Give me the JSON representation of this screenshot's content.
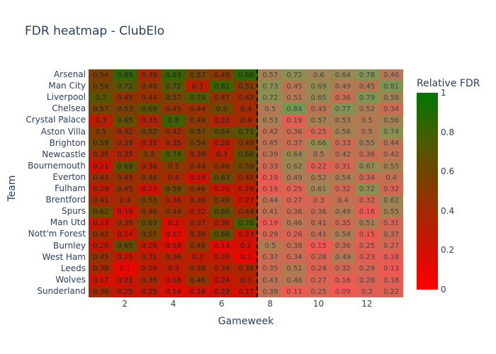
{
  "title": "FDR heatmap - ClubElo",
  "chart_data": {
    "type": "heatmap",
    "title": "FDR heatmap - ClubElo",
    "xlabel": "Gameweek",
    "ylabel": "Team",
    "x": [
      1,
      2,
      3,
      4,
      5,
      6,
      7,
      8,
      9,
      10,
      11,
      12,
      13
    ],
    "xticks": [
      "2",
      "4",
      "6",
      "8",
      "10",
      "12"
    ],
    "teams": [
      "Arsenal",
      "Man City",
      "Liverpool",
      "Chelsea",
      "Crystal Palace",
      "Aston Villa",
      "Brighton",
      "Newcastle",
      "Bournemouth",
      "Everton",
      "Fulham",
      "Brentford",
      "Spurs",
      "Man Utd",
      "Nott'm Forest",
      "Burnley",
      "West Ham",
      "Leeds",
      "Wolves",
      "Sunderland"
    ],
    "values": [
      [
        0.54,
        0.85,
        0.39,
        0.83,
        0.57,
        0.49,
        0.86,
        0.57,
        0.72,
        0.6,
        0.64,
        0.78,
        0.46
      ],
      [
        0.58,
        0.72,
        0.48,
        0.72,
        0.3,
        0.81,
        0.51,
        0.73,
        0.45,
        0.69,
        0.49,
        0.45,
        0.81
      ],
      [
        0.7,
        0.45,
        0.44,
        0.57,
        0.74,
        0.47,
        0.42,
        0.72,
        0.51,
        0.65,
        0.36,
        0.79,
        0.58
      ],
      [
        0.57,
        0.53,
        0.68,
        0.45,
        0.44,
        0.6,
        0.4,
        0.5,
        0.84,
        0.45,
        0.77,
        0.52,
        0.34
      ],
      [
        0.3,
        0.65,
        0.33,
        0.8,
        0.49,
        0.33,
        0.4,
        0.53,
        0.19,
        0.57,
        0.53,
        0.5,
        0.56
      ],
      [
        0.5,
        0.42,
        0.52,
        0.42,
        0.57,
        0.64,
        0.71,
        0.42,
        0.36,
        0.25,
        0.56,
        0.5,
        0.74
      ],
      [
        0.59,
        0.39,
        0.31,
        0.35,
        0.54,
        0.28,
        0.49,
        0.45,
        0.37,
        0.66,
        0.33,
        0.55,
        0.44
      ],
      [
        0.35,
        0.35,
        0.5,
        0.74,
        0.39,
        0.3,
        0.68,
        0.39,
        0.64,
        0.5,
        0.42,
        0.36,
        0.42
      ],
      [
        0.21,
        0.69,
        0.38,
        0.5,
        0.44,
        0.46,
        0.59,
        0.33,
        0.62,
        0.22,
        0.31,
        0.67,
        0.55
      ],
      [
        0.43,
        0.45,
        0.46,
        0.4,
        0.19,
        0.63,
        0.42,
        0.19,
        0.49,
        0.52,
        0.54,
        0.34,
        0.4
      ],
      [
        0.29,
        0.45,
        0.22,
        0.58,
        0.46,
        0.25,
        0.29,
        0.19,
        0.25,
        0.61,
        0.32,
        0.72,
        0.32
      ],
      [
        0.41,
        0.4,
        0.53,
        0.36,
        0.38,
        0.49,
        0.27,
        0.44,
        0.27,
        0.3,
        0.4,
        0.32,
        0.62
      ],
      [
        0.62,
        0.19,
        0.46,
        0.44,
        0.32,
        0.66,
        0.44,
        0.41,
        0.36,
        0.36,
        0.49,
        0.16,
        0.55
      ],
      [
        0.23,
        0.39,
        0.63,
        0.2,
        0.37,
        0.36,
        0.76,
        0.19,
        0.46,
        0.41,
        0.35,
        0.51,
        0.31
      ],
      [
        0.42,
        0.24,
        0.55,
        0.12,
        0.38,
        0.68,
        0.23,
        0.29,
        0.26,
        0.41,
        0.54,
        0.15,
        0.37
      ],
      [
        0.26,
        0.65,
        0.26,
        0.18,
        0.46,
        0.13,
        0.2,
        0.5,
        0.38,
        0.15,
        0.36,
        0.25,
        0.27
      ],
      [
        0.45,
        0.25,
        0.31,
        0.36,
        0.3,
        0.26,
        0.1,
        0.37,
        0.34,
        0.28,
        0.49,
        0.23,
        0.18
      ],
      [
        0.38,
        0.1,
        0.29,
        0.3,
        0.38,
        0.34,
        0.38,
        0.35,
        0.51,
        0.24,
        0.32,
        0.29,
        0.13
      ],
      [
        0.17,
        0.21,
        0.35,
        0.18,
        0.46,
        0.24,
        0.3,
        0.43,
        0.46,
        0.27,
        0.16,
        0.28,
        0.18
      ],
      [
        0.36,
        0.25,
        0.25,
        0.14,
        0.18,
        0.22,
        0.17,
        0.39,
        0.11,
        0.25,
        0.09,
        0.2,
        0.22
      ]
    ],
    "divider_after_gameweek": 7,
    "faded_from_gameweek": 8,
    "colorbar": {
      "title": "Relative FDR",
      "ticks": [
        "0",
        "0.2",
        "0.4",
        "0.6",
        "0.8",
        "1"
      ],
      "range": [
        0,
        1
      ],
      "low_color": "#ff0000",
      "high_color": "#007700"
    }
  }
}
